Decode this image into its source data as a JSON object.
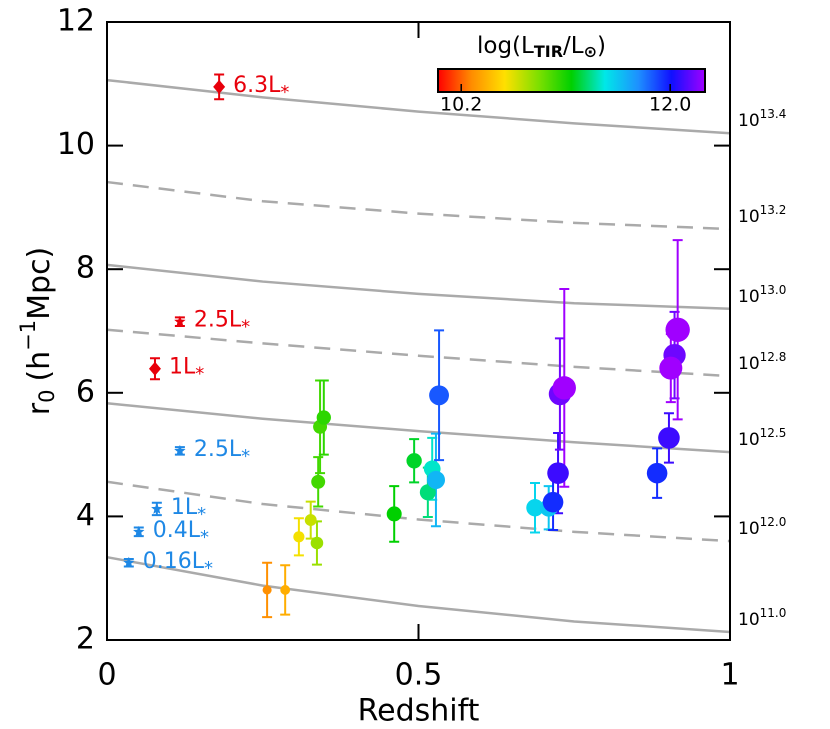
{
  "chart_data": {
    "type": "scatter",
    "xlabel": "Redshift",
    "ylabel": {
      "symbol": "r",
      "subscript": "0",
      "unit_open": "(h",
      "unit_sup": "−1",
      "unit_close": "Mpc)"
    },
    "xlim": [
      0,
      1
    ],
    "xticks": [
      0,
      0.5,
      1
    ],
    "ylim": [
      2,
      12
    ],
    "yticks": [
      2,
      4,
      6,
      8,
      10,
      12
    ],
    "colorbar": {
      "title": {
        "pre": "log(L",
        "sub1": "TIR",
        "mid": "/L",
        "sub2": "⊙",
        "post": ")"
      },
      "clim": [
        10.0,
        12.3
      ],
      "ticks": [
        10.2,
        {
          "value": 12,
          "label": "12.0"
        }
      ],
      "colormap": [
        "#ff0000",
        "#ff8c00",
        "#ffe000",
        "#7fe000",
        "#00d000",
        "#00e8e8",
        "#1e90ff",
        "#1010ff",
        "#a000ff"
      ]
    },
    "halo_mass_curves": [
      {
        "base": "10",
        "exponent": "13.4",
        "style": "solid",
        "x": [
          0,
          0.25,
          0.5,
          0.75,
          1
        ],
        "y": [
          11.06,
          10.78,
          10.55,
          10.36,
          10.2
        ]
      },
      {
        "base": "10",
        "exponent": "13.2",
        "style": "dashed",
        "x": [
          0,
          0.25,
          0.5,
          0.75,
          1
        ],
        "y": [
          9.41,
          9.1,
          8.9,
          8.75,
          8.65
        ]
      },
      {
        "base": "10",
        "exponent": "13.0",
        "style": "solid",
        "x": [
          0,
          0.25,
          0.5,
          0.75,
          1
        ],
        "y": [
          8.07,
          7.8,
          7.6,
          7.45,
          7.36
        ]
      },
      {
        "base": "10",
        "exponent": "12.8",
        "style": "dashed",
        "x": [
          0,
          0.25,
          0.5,
          0.75,
          1
        ],
        "y": [
          7.02,
          6.8,
          6.6,
          6.42,
          6.27
        ]
      },
      {
        "base": "10",
        "exponent": "12.5",
        "style": "solid",
        "x": [
          0,
          0.25,
          0.5,
          0.75,
          1
        ],
        "y": [
          5.83,
          5.58,
          5.38,
          5.2,
          5.04
        ]
      },
      {
        "base": "10",
        "exponent": "12.0",
        "style": "dashed",
        "x": [
          0,
          0.25,
          0.5,
          0.75,
          1
        ],
        "y": [
          4.56,
          4.2,
          3.95,
          3.75,
          3.6
        ]
      },
      {
        "base": "10",
        "exponent": "11.0",
        "style": "solid",
        "x": [
          0,
          0.25,
          0.5,
          0.75,
          1
        ],
        "y": [
          3.34,
          2.88,
          2.55,
          2.3,
          2.13
        ]
      }
    ],
    "reference_points": [
      {
        "label": "6.3L",
        "subscript": "*",
        "color": "#e8000b",
        "marker": "diamond",
        "x": 0.18,
        "y": 10.95,
        "err": 0.2
      },
      {
        "label": "2.5L",
        "subscript": "*",
        "color": "#e8000b",
        "marker": "star",
        "x": 0.117,
        "y": 7.15,
        "err": 0.07
      },
      {
        "label": "1L",
        "subscript": "*",
        "color": "#e8000b",
        "marker": "diamond",
        "x": 0.077,
        "y": 6.39,
        "err": 0.17
      },
      {
        "label": "2.5L",
        "subscript": "*",
        "color": "#1e88e5",
        "marker": "star",
        "x": 0.117,
        "y": 5.06,
        "err": 0.06
      },
      {
        "label": "1L",
        "subscript": "*",
        "color": "#1e88e5",
        "marker": "star",
        "x": 0.08,
        "y": 4.12,
        "err": 0.1
      },
      {
        "label": "0.4L",
        "subscript": "*",
        "color": "#1e88e5",
        "marker": "star",
        "x": 0.051,
        "y": 3.75,
        "err": 0.07
      },
      {
        "label": "0.16L",
        "subscript": "*",
        "color": "#1e88e5",
        "marker": "star",
        "x": 0.035,
        "y": 3.25,
        "err": 0.06
      }
    ],
    "points": {
      "x": [
        0.257,
        0.286,
        0.308,
        0.327,
        0.337,
        0.339,
        0.342,
        0.348,
        0.461,
        0.493,
        0.515,
        0.522,
        0.528,
        0.533,
        0.687,
        0.709,
        0.716,
        0.724,
        0.727,
        0.734,
        0.883,
        0.902,
        0.911,
        0.905,
        0.916
      ],
      "y": [
        2.81,
        2.81,
        3.67,
        3.94,
        3.57,
        4.56,
        5.45,
        5.6,
        4.04,
        4.9,
        4.39,
        4.77,
        4.59,
        5.96,
        4.14,
        4.14,
        4.23,
        4.7,
        5.98,
        6.08,
        4.7,
        5.27,
        6.61,
        6.4,
        7.02
      ],
      "err": [
        0.44,
        0.4,
        0.3,
        0.3,
        0.35,
        0.4,
        0.75,
        0.6,
        0.45,
        0.35,
        0.4,
        0.5,
        0.75,
        1.05,
        0.4,
        0.35,
        0.45,
        0.65,
        0.9,
        1.6,
        0.4,
        0.4,
        0.7,
        0.55,
        1.45
      ],
      "logL": [
        10.3,
        10.4,
        10.6,
        10.7,
        10.8,
        11.0,
        11.0,
        11.05,
        11.15,
        11.2,
        11.3,
        11.4,
        11.6,
        11.85,
        11.5,
        11.55,
        11.95,
        12.1,
        12.2,
        12.35,
        11.95,
        12.1,
        12.2,
        12.3,
        12.5
      ]
    }
  }
}
